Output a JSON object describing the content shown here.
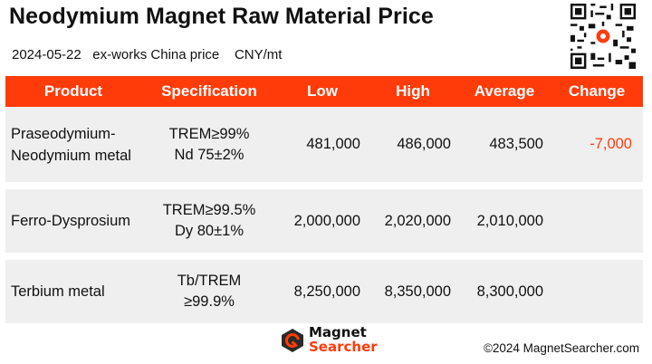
{
  "header": {
    "title": "Neodymium Magnet Raw Material Price",
    "subtitle": "2024-05-22   ex-works China price    CNY/mt"
  },
  "table": {
    "columns": [
      "Product",
      "Specification",
      "Low",
      "High",
      "Average",
      "Change"
    ],
    "rows": [
      {
        "product": [
          "Praseodymium-",
          "Neodymium metal"
        ],
        "spec": [
          "TREM≥99%",
          "Nd 75±2%"
        ],
        "low": "481,000",
        "high": "486,000",
        "average": "483,500",
        "change": "-7,000"
      },
      {
        "product": [
          "Ferro-Dysprosium"
        ],
        "spec": [
          "TREM≥99.5%",
          "Dy 80±1%"
        ],
        "low": "2,000,000",
        "high": "2,020,000",
        "average": "2,010,000",
        "change": ""
      },
      {
        "product": [
          "Terbium metal"
        ],
        "spec": [
          "Tb/TREM",
          "≥99.9%"
        ],
        "low": "8,250,000",
        "high": "8,350,000",
        "average": "8,300,000",
        "change": ""
      }
    ]
  },
  "footer": {
    "logo_line1": "Magnet",
    "logo_line2": "Searcher",
    "copyright": "©2024 MagnetSearcher.com"
  },
  "colors": {
    "accent": "#ff3b0a",
    "row_bg": "#efefef",
    "negative": "#ff3b0a"
  },
  "icons": {
    "qr": "qr-code-icon",
    "logo": "magnet-searcher-logo-icon"
  }
}
